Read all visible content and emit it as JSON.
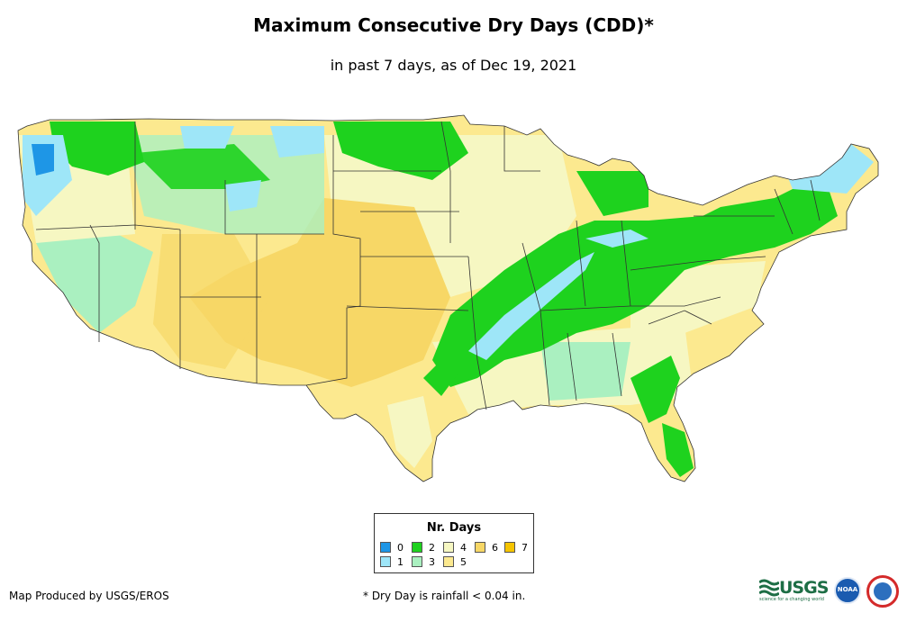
{
  "title": "Maximum Consecutive Dry Days (CDD)*",
  "subtitle": "in past 7 days, as of Dec 19, 2021",
  "legend": {
    "title": "Nr. Days",
    "items": [
      {
        "label": "0",
        "color": "#1e96e6"
      },
      {
        "label": "1",
        "color": "#9ee6f8"
      },
      {
        "label": "2",
        "color": "#1ed21e"
      },
      {
        "label": "3",
        "color": "#aaf0c0"
      },
      {
        "label": "4",
        "color": "#f6f7c2"
      },
      {
        "label": "5",
        "color": "#fce98f"
      },
      {
        "label": "6",
        "color": "#f7d766"
      },
      {
        "label": "7",
        "color": "#f5c400"
      }
    ]
  },
  "credit": "Map Produced by USGS/EROS",
  "footnote": "* Dry Day is rainfall < 0.04 in.",
  "logos": {
    "usgs": "USGS",
    "usgs_tagline": "science for a changing world",
    "noaa": "NOAA",
    "nws": "National Weather Service"
  },
  "map": {
    "description_colors": {
      "water_blue": "#1e96e6",
      "light_blue": "#9ee6f8",
      "green": "#1ed21e",
      "mint": "#aaf0c0",
      "pale_yellow": "#f6f7c2",
      "yellow": "#fce98f",
      "dark_yellow": "#f7d766"
    }
  }
}
